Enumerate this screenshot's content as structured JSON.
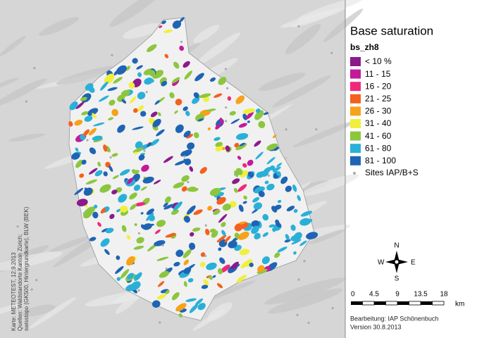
{
  "legend": {
    "title": "Base saturation",
    "layer": "bs_zh8",
    "items": [
      {
        "label": "< 10 %",
        "color": "#8b1a8b"
      },
      {
        "label": "11 - 15",
        "color": "#c21a9a"
      },
      {
        "label": "16 - 20",
        "color": "#f0287a"
      },
      {
        "label": "21 - 25",
        "color": "#f4601e"
      },
      {
        "label": "26 - 30",
        "color": "#f7a21b"
      },
      {
        "label": "31 - 40",
        "color": "#f0f03c"
      },
      {
        "label": "41 - 60",
        "color": "#8cc63f"
      },
      {
        "label": "61 - 80",
        "color": "#2ab0d8"
      },
      {
        "label": "81 - 100",
        "color": "#1f64b4"
      }
    ],
    "sites": "Sites IAP/B+S"
  },
  "compass": {
    "n": "N",
    "s": "S",
    "e": "E",
    "w": "W"
  },
  "scale_bar": {
    "labels": [
      "0",
      "4.5",
      "9",
      "13.5",
      "18"
    ],
    "unit": "km"
  },
  "credits": {
    "editor": "Bearbeitung: IAP Schönenbuch",
    "version": "Version 30.8.2013",
    "source_lines": [
      "Karte: METEOTEST, 12.9.2013",
      "Quellen: Waldstandorte Kanton Zürich;",
      "swisstopo (GK500, Hintergrundkarte), BLW (BEK)"
    ]
  }
}
